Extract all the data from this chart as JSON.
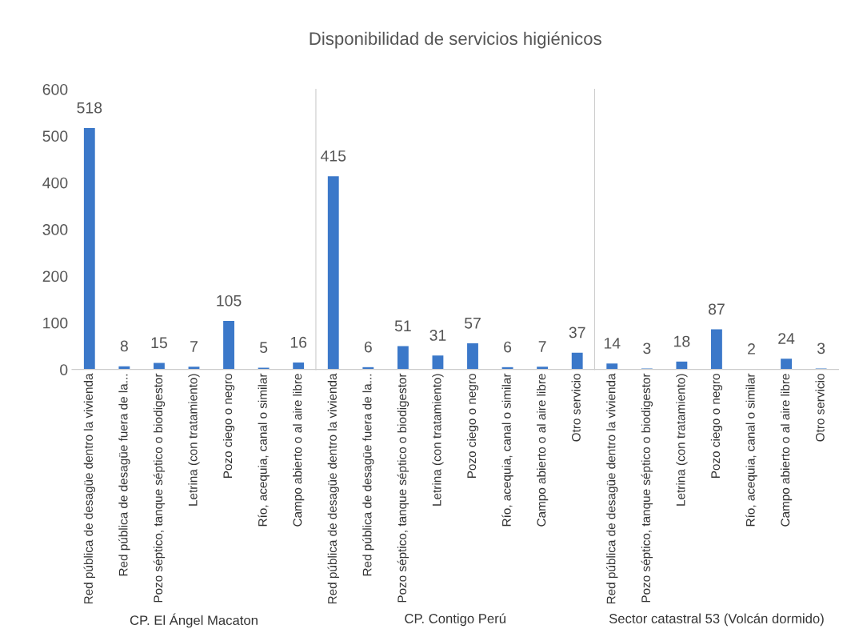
{
  "chart_data": [
    {
      "type": "bar",
      "xlabel": "CP. El Ángel Macaton",
      "categories": [
        "Red pública de desagüe dentro la vivienda",
        "Red pública de desagüe fuera de la...",
        "Pozo séptico, tanque séptico o biodigestor",
        "Letrina (con tratamiento)",
        "Pozo ciego o negro",
        "Río, acequia, canal o similar",
        "Campo abierto o al aire libre"
      ],
      "values": [
        518,
        8,
        15,
        7,
        105,
        5,
        16
      ],
      "color": "#3b78c9",
      "ylim": [
        0,
        600
      ],
      "yticks": [
        0,
        100,
        200,
        300,
        400,
        500,
        600
      ],
      "data_labels": true
    },
    {
      "type": "bar",
      "title": "Disponibilidad de servicios higiénicos",
      "xlabel": "CP. Contigo Perú",
      "categories": [
        "Red pública de desagüe dentro la vivienda",
        "Red pública de desagüe fuera de la...",
        "Pozo séptico, tanque séptico o biodigestor",
        "Letrina (con tratamiento)",
        "Pozo ciego o negro",
        "Río, acequia, canal o similar",
        "Campo abierto o al aire libre",
        "Otro servicio"
      ],
      "values": [
        415,
        6,
        51,
        31,
        57,
        6,
        7,
        37
      ],
      "color": "#3b78c9",
      "ylim": [
        0,
        600
      ],
      "tick_labels": "x",
      "data_labels": true
    },
    {
      "type": "bar",
      "xlabel": "Sector catastral 53 (Volcán dormido)",
      "categories": [
        "Red pública de desagüe dentro la vivienda",
        "Pozo séptico, tanque séptico o biodigestor",
        "Letrina (con tratamiento)",
        "Pozo ciego o negro",
        "Río, acequia, canal o similar",
        "Campo abierto o al aire libre",
        "Otro servicio"
      ],
      "values": [
        14,
        3,
        18,
        87,
        2,
        24,
        3
      ],
      "color": "#3b78c9",
      "ylim": [
        0,
        600
      ],
      "tick_labels": "x",
      "data_labels": true
    }
  ]
}
